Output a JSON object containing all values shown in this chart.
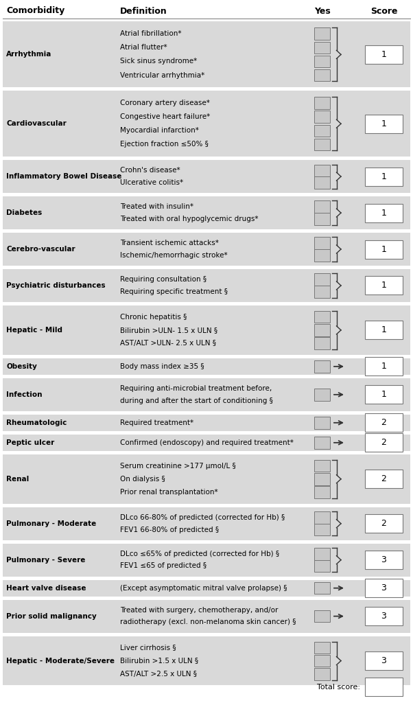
{
  "header": [
    "Comorbidity",
    "Definition",
    "Yes",
    "Score"
  ],
  "rows": [
    {
      "comorbidity": "Arrhythmia",
      "definitions": [
        "Atrial fibrillation*",
        "Atrial flutter*",
        "Sick sinus syndrome*",
        "Ventricular arrhythmia*"
      ],
      "score": "1",
      "connector": "brace"
    },
    {
      "comorbidity": "Cardiovascular",
      "definitions": [
        "Coronary artery disease*",
        "Congestive heart failure*",
        "Myocardial infarction*",
        "Ejection fraction ≤50% §"
      ],
      "score": "1",
      "connector": "brace"
    },
    {
      "comorbidity": "Inflammatory Bowel Disease",
      "definitions": [
        "Crohn's disease*",
        "Ulcerative colitis*"
      ],
      "score": "1",
      "connector": "brace"
    },
    {
      "comorbidity": "Diabetes",
      "definitions": [
        "Treated with insulin*",
        "Treated with oral hypoglycemic drugs*"
      ],
      "score": "1",
      "connector": "brace"
    },
    {
      "comorbidity": "Cerebro-vascular",
      "definitions": [
        "Transient ischemic attacks*",
        "Ischemic/hemorrhagic stroke*"
      ],
      "score": "1",
      "connector": "brace"
    },
    {
      "comorbidity": "Psychiatric disturbances",
      "definitions": [
        "Requiring consultation §",
        "Requiring specific treatment §"
      ],
      "score": "1",
      "connector": "brace"
    },
    {
      "comorbidity": "Hepatic - Mild",
      "definitions": [
        "Chronic hepatitis §",
        "Bilirubin >ULN- 1.5 x ULN §",
        "AST/ALT >ULN- 2.5 x ULN §"
      ],
      "score": "1",
      "connector": "brace"
    },
    {
      "comorbidity": "Obesity",
      "definitions": [
        "Body mass index ≥35 §"
      ],
      "score": "1",
      "connector": "arrow"
    },
    {
      "comorbidity": "Infection",
      "definitions": [
        "Requiring anti-microbial treatment before,",
        "during and after the start of conditioning §"
      ],
      "score": "1",
      "connector": "arrow",
      "single_checkbox": true
    },
    {
      "comorbidity": "Rheumatologic",
      "definitions": [
        "Required treatment*"
      ],
      "score": "2",
      "connector": "arrow"
    },
    {
      "comorbidity": "Peptic ulcer",
      "definitions": [
        "Confirmed (endoscopy) and required treatment*"
      ],
      "score": "2",
      "connector": "arrow"
    },
    {
      "comorbidity": "Renal",
      "definitions": [
        "Serum creatinine >177 μmol/L §",
        "On dialysis §",
        "Prior renal transplantation*"
      ],
      "score": "2",
      "connector": "brace"
    },
    {
      "comorbidity": "Pulmonary - Moderate",
      "definitions": [
        "DLco 66-80% of predicted (corrected for Hb) §",
        "FEV1 66-80% of predicted §"
      ],
      "score": "2",
      "connector": "brace"
    },
    {
      "comorbidity": "Pulmonary - Severe",
      "definitions": [
        "DLco ≤65% of predicted (corrected for Hb) §",
        "FEV1 ≤65 of predicted §"
      ],
      "score": "3",
      "connector": "brace"
    },
    {
      "comorbidity": "Heart valve disease",
      "definitions": [
        "(Except asymptomatic mitral valve prolapse) §"
      ],
      "score": "3",
      "connector": "arrow"
    },
    {
      "comorbidity": "Prior solid malignancy",
      "definitions": [
        "Treated with surgery, chemotherapy, and/or",
        "radiotherapy (excl. non-melanoma skin cancer) §"
      ],
      "score": "3",
      "connector": "arrow",
      "single_checkbox": true
    },
    {
      "comorbidity": "Hepatic - Moderate/Severe",
      "definitions": [
        "Liver cirrhosis §",
        "Bilirubin >1.5 x ULN §",
        "AST/ALT >2.5 x ULN §"
      ],
      "score": "3",
      "connector": "brace"
    }
  ],
  "bg_gray": "#d9d9d9",
  "cb_gray": "#c8c8c8",
  "white": "#ffffff",
  "dark": "#333333",
  "line_color": "#777777",
  "text_color": "#000000",
  "header_fontsize": 9,
  "body_fontsize": 7.5,
  "score_fontsize": 9
}
